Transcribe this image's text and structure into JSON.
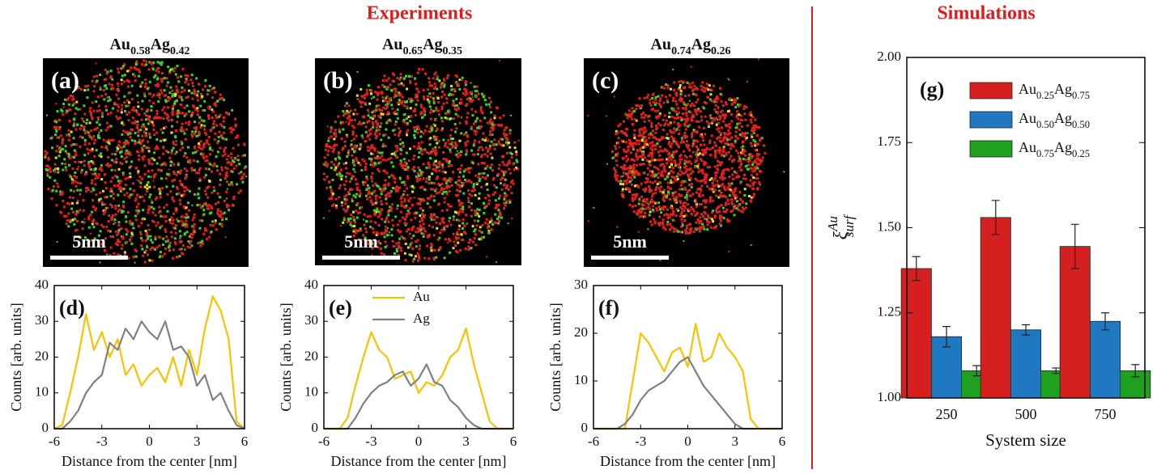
{
  "headers": {
    "experiments": "Experiments",
    "simulations": "Simulations"
  },
  "images": [
    {
      "title": "Au0.58Ag0.42",
      "label": "(a)",
      "scale_bar": "5nm"
    },
    {
      "title": "Au0.65Ag0.35",
      "label": "(b)",
      "scale_bar": "5nm"
    },
    {
      "title": "Au0.74Ag0.26",
      "label": "(c)",
      "scale_bar": "5nm"
    }
  ],
  "chart_data": [
    {
      "type": "line",
      "label": "(d)",
      "xlabel": "Distance from the center [nm]",
      "ylabel": "Counts [arb. units]",
      "x": [
        -6,
        -5.5,
        -5,
        -4.5,
        -4,
        -3.5,
        -3,
        -2.5,
        -2,
        -1.5,
        -1,
        -0.5,
        0,
        0.5,
        1,
        1.5,
        2,
        2.5,
        3,
        3.5,
        4,
        4.5,
        5,
        5.5,
        6
      ],
      "xlim": [
        -6,
        6
      ],
      "xticks": [
        -6,
        -3,
        0,
        3,
        6
      ],
      "ylim": [
        0,
        40
      ],
      "yticks": [
        0,
        10,
        20,
        30,
        40
      ],
      "series": [
        {
          "color": "#f5c400",
          "values": [
            0,
            1,
            10,
            20,
            32,
            22,
            27,
            20,
            25,
            15,
            18,
            12,
            15,
            17,
            13,
            20,
            12,
            22,
            15,
            28,
            37,
            33,
            25,
            2,
            0
          ]
        },
        {
          "color": "#808080",
          "values": [
            0,
            0,
            2,
            5,
            10,
            13,
            15,
            24,
            22,
            28,
            25,
            30,
            27,
            25,
            30,
            22,
            23,
            20,
            12,
            15,
            8,
            10,
            5,
            1,
            0
          ]
        }
      ]
    },
    {
      "type": "line",
      "label": "(e)",
      "xlabel": "Distance from the center [nm]",
      "ylabel": "Counts [arb. units]",
      "x": [
        -6,
        -5.5,
        -5,
        -4.5,
        -4,
        -3.5,
        -3,
        -2.5,
        -2,
        -1.5,
        -1,
        -0.5,
        0,
        0.5,
        1,
        1.5,
        2,
        2.5,
        3,
        3.5,
        4,
        4.5,
        5,
        5.5,
        6
      ],
      "xlim": [
        -6,
        6
      ],
      "xticks": [
        -6,
        -3,
        0,
        3,
        6
      ],
      "ylim": [
        0,
        40
      ],
      "yticks": [
        0,
        10,
        20,
        30,
        40
      ],
      "series": [
        {
          "name": "Au",
          "color": "#f5c400",
          "values": [
            0,
            0,
            0,
            3,
            12,
            20,
            27,
            22,
            20,
            14,
            15,
            16,
            10,
            13,
            12,
            15,
            20,
            22,
            28,
            18,
            10,
            2,
            0,
            0,
            0
          ]
        },
        {
          "name": "Ag",
          "color": "#808080",
          "values": [
            0,
            0,
            0,
            0,
            3,
            7,
            10,
            12,
            13,
            15,
            16,
            12,
            14,
            18,
            13,
            12,
            8,
            6,
            3,
            1,
            0,
            0,
            0,
            0,
            0
          ]
        }
      ]
    },
    {
      "type": "line",
      "label": "(f)",
      "xlabel": "Distance from the center [nm]",
      "ylabel": "Counts [arb. units]",
      "x": [
        -6,
        -5.5,
        -5,
        -4.5,
        -4,
        -3.5,
        -3,
        -2.5,
        -2,
        -1.5,
        -1,
        -0.5,
        0,
        0.5,
        1,
        1.5,
        2,
        2.5,
        3,
        3.5,
        4,
        4.5,
        5,
        5.5,
        6
      ],
      "xlim": [
        -6,
        6
      ],
      "xticks": [
        -6,
        -3,
        0,
        3,
        6
      ],
      "ylim": [
        0,
        30
      ],
      "yticks": [
        0,
        10,
        20,
        30
      ],
      "series": [
        {
          "color": "#f5c400",
          "values": [
            0,
            0,
            0,
            0,
            0,
            10,
            20,
            18,
            15,
            12,
            16,
            17,
            13,
            22,
            14,
            15,
            20,
            17,
            15,
            12,
            2,
            0,
            0,
            0,
            0
          ]
        },
        {
          "color": "#808080",
          "values": [
            0,
            0,
            0,
            0,
            1,
            3,
            6,
            8,
            9,
            10,
            12,
            14,
            15,
            12,
            9,
            7,
            5,
            3,
            1,
            0,
            0,
            0,
            0,
            0,
            0
          ]
        }
      ]
    },
    {
      "type": "bar",
      "label": "(g)",
      "xlabel": "System size",
      "ylabel": {
        "symbol": "ξ",
        "sup": "Au",
        "sub": "surf"
      },
      "categories": [
        "250",
        "500",
        "750"
      ],
      "ylim": [
        1,
        2
      ],
      "yticks": [
        {
          "value": 1,
          "label": "1.00"
        },
        {
          "value": 1.25,
          "label": "1.25"
        },
        {
          "value": 1.5,
          "label": "1.50"
        },
        {
          "value": 1.75,
          "label": "1.75"
        },
        {
          "value": 2,
          "label": "2.00"
        }
      ],
      "series": [
        {
          "name": "Au0.25Ag0.75",
          "color": "#d62020",
          "values": [
            1.38,
            1.53,
            1.445
          ],
          "errors": [
            0.035,
            0.05,
            0.065
          ]
        },
        {
          "name": "Au0.50Ag0.50",
          "color": "#1f78c0",
          "values": [
            1.18,
            1.2,
            1.225
          ],
          "errors": [
            0.03,
            0.015,
            0.025
          ]
        },
        {
          "name": "Au0.75Ag0.25",
          "color": "#1fa01f",
          "values": [
            1.08,
            1.08,
            1.08
          ],
          "errors": [
            0.015,
            0.008,
            0.018
          ]
        }
      ]
    }
  ]
}
